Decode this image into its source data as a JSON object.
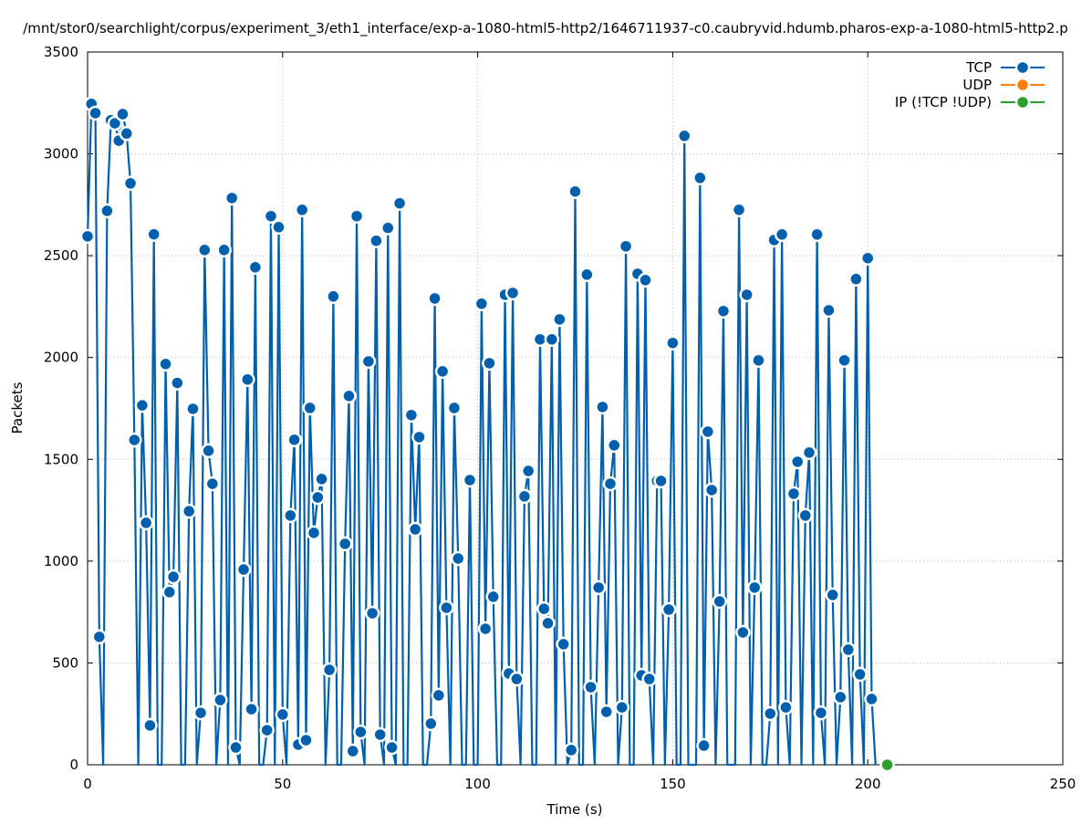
{
  "chart_data": {
    "type": "line",
    "title": "/mnt/stor0/searchlight/corpus/experiment_3/eth1_interface/exp-a-1080-html5-http2/1646711937-c0.caubryvid.hdumb.pharos-exp-a-1080-html5-http2.p",
    "xlabel": "Time (s)",
    "ylabel": "Packets",
    "xlim": [
      0,
      250
    ],
    "ylim": [
      0,
      3500
    ],
    "xticks": [
      0,
      50,
      100,
      150,
      200,
      250
    ],
    "yticks": [
      0,
      500,
      1000,
      1500,
      2000,
      2500,
      3000,
      3500
    ],
    "grid": true,
    "legend_position": "top-right",
    "series": [
      {
        "name": "TCP",
        "color": "#0060ad",
        "x_start": 0,
        "x_step": 1,
        "values": [
          2595,
          3245,
          3200,
          628,
          0,
          2720,
          3165,
          3150,
          3065,
          3195,
          3100,
          2855,
          1595,
          0,
          1765,
          1188,
          193,
          2605,
          0,
          0,
          1968,
          848,
          923,
          1875,
          0,
          0,
          1245,
          1748,
          0,
          255,
          2528,
          1542,
          1380,
          0,
          318,
          2528,
          0,
          2783,
          85,
          0,
          959,
          1892,
          273,
          2443,
          0,
          0,
          170,
          2694,
          0,
          2640,
          247,
          0,
          1224,
          1596,
          99,
          2725,
          121,
          1752,
          1139,
          1313,
          1403,
          0,
          466,
          2300,
          0,
          0,
          1085,
          1811,
          67,
          2694,
          161,
          0,
          1981,
          744,
          2573,
          148,
          0,
          2636,
          85,
          0,
          2757,
          0,
          0,
          1717,
          1156,
          1609,
          0,
          0,
          202,
          2290,
          341,
          1932,
          771,
          0,
          1752,
          1013,
          0,
          0,
          1398,
          0,
          0,
          2264,
          668,
          1972,
          825,
          0,
          0,
          2308,
          448,
          2317,
          421,
          0,
          1318,
          1443,
          0,
          0,
          2089,
          766,
          695,
          2089,
          0,
          2187,
          592,
          0,
          72,
          2815,
          0,
          0,
          2407,
          381,
          0,
          870,
          1757,
          260,
          1380,
          1569,
          0,
          282,
          2546,
          0,
          0,
          2411,
          439,
          2380,
          421,
          0,
          1394,
          1394,
          0,
          762,
          2071,
          0,
          0,
          3088,
          0,
          0,
          0,
          2882,
          94,
          1636,
          1349,
          0,
          802,
          2228,
          0,
          0,
          0,
          2725,
          650,
          2308,
          0,
          870,
          1986,
          0,
          0,
          251,
          2577,
          0,
          2604,
          282,
          0,
          1331,
          1488,
          0,
          1224,
          1533,
          0,
          2604,
          255,
          0,
          2232,
          834,
          0,
          332,
          1986,
          565,
          0,
          2385,
          444,
          0,
          2488,
          323,
          0
        ]
      },
      {
        "name": "UDP",
        "color": "#ff7f0e",
        "points": []
      },
      {
        "name": "IP (!TCP  !UDP)",
        "color": "#2ca02c",
        "points": [
          [
            205,
            0
          ]
        ]
      }
    ]
  }
}
